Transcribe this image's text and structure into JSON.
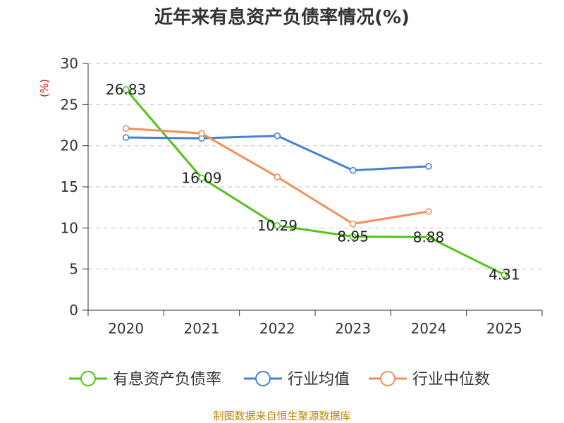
{
  "chart_data": {
    "type": "line",
    "title": "近年来有息资产负债率情况(%)",
    "ylabel": "(%)",
    "xlabel": "",
    "categories": [
      "2020",
      "2021",
      "2022",
      "2023",
      "2024",
      "2025"
    ],
    "ylim": [
      0,
      30
    ],
    "yticks": [
      0,
      5,
      10,
      15,
      20,
      25,
      30
    ],
    "grid": true,
    "legend_position": "bottom",
    "series": [
      {
        "name": "有息资产负债率",
        "color": "#52c41a",
        "values": [
          26.83,
          16.09,
          10.29,
          8.95,
          8.88,
          4.31
        ],
        "labels": [
          "26.83",
          "16.09",
          "10.29",
          "8.95",
          "8.88",
          "4.31"
        ]
      },
      {
        "name": "行业均值",
        "color": "#4a7fd6",
        "values": [
          21.0,
          20.9,
          21.2,
          17.0,
          17.5,
          null
        ]
      },
      {
        "name": "行业中位数",
        "color": "#f0905a",
        "values": [
          22.1,
          21.5,
          16.2,
          10.5,
          12.0,
          null
        ]
      }
    ],
    "source": "制图数据来自恒生聚源数据库"
  }
}
